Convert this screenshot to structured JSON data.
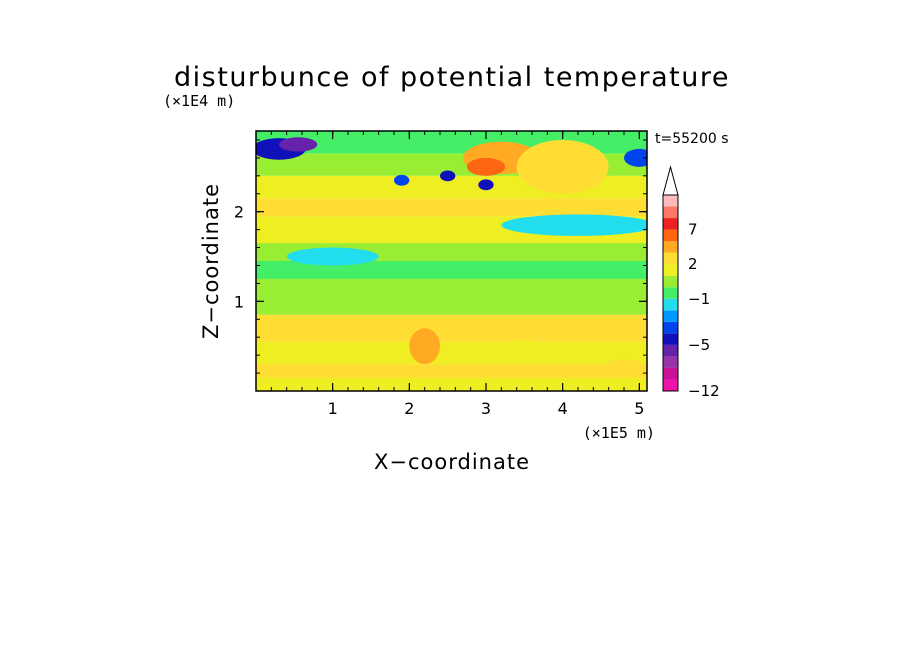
{
  "chart_data": {
    "type": "heatmap",
    "title": "disturbunce of potential temperature",
    "time_label": "t=55200 s",
    "xlabel": "X−coordinate",
    "ylabel": "Z−coordinate",
    "x_unit": "(×1E5 m)",
    "y_unit": "(×1E4 m)",
    "xlim": [
      0,
      5.1
    ],
    "ylim": [
      0,
      2.9
    ],
    "x_ticks": [
      "1",
      "2",
      "3",
      "4",
      "5"
    ],
    "y_ticks": [
      "1",
      "2"
    ],
    "colorbar": {
      "labels": [
        "7",
        "2",
        "−1",
        "−5",
        "−12"
      ],
      "levels": [
        -12,
        -10,
        -8,
        -6,
        -5,
        -4,
        -3,
        -2,
        -1,
        0,
        1,
        2,
        3,
        5,
        7,
        9,
        11
      ],
      "colors": [
        "#ee11aa",
        "#cc1199",
        "#9933aa",
        "#6622aa",
        "#1111bb",
        "#0044ee",
        "#0099ff",
        "#22ddee",
        "#44ee66",
        "#99ee33",
        "#eeee22",
        "#ffdd33",
        "#ffaa22",
        "#ff6611",
        "#ee2222",
        "#ff7766",
        "#ffbbbb"
      ]
    },
    "bands": [
      {
        "z": [
          0.0,
          0.15
        ],
        "value": 1.5
      },
      {
        "z": [
          0.15,
          0.3
        ],
        "value": 2.0
      },
      {
        "z": [
          0.3,
          0.55
        ],
        "value": 1.5
      },
      {
        "z": [
          0.55,
          0.85
        ],
        "value": 2.0
      },
      {
        "z": [
          0.85,
          1.25
        ],
        "value": 0.0
      },
      {
        "z": [
          1.25,
          1.45
        ],
        "value": -0.5
      },
      {
        "z": [
          1.45,
          1.65
        ],
        "value": 0.5
      },
      {
        "z": [
          1.65,
          1.95
        ],
        "value": 1.5
      },
      {
        "z": [
          1.95,
          2.15
        ],
        "value": 2.5
      },
      {
        "z": [
          2.15,
          2.4
        ],
        "value": 1.5
      },
      {
        "z": [
          2.4,
          2.65
        ],
        "value": 0.5
      },
      {
        "z": [
          2.65,
          2.9
        ],
        "value": -0.5
      }
    ],
    "blobs": [
      {
        "x": 0.3,
        "z": 2.7,
        "rx": 0.35,
        "rz": 0.12,
        "value": -4.5
      },
      {
        "x": 0.55,
        "z": 2.75,
        "rx": 0.25,
        "rz": 0.08,
        "value": -5.5
      },
      {
        "x": 5.0,
        "z": 2.6,
        "rx": 0.2,
        "rz": 0.1,
        "value": -3.5
      },
      {
        "x": 3.2,
        "z": 2.6,
        "rx": 0.5,
        "rz": 0.18,
        "value": 4.0
      },
      {
        "x": 3.0,
        "z": 2.5,
        "rx": 0.25,
        "rz": 0.1,
        "value": 6.0
      },
      {
        "x": 4.0,
        "z": 2.5,
        "rx": 0.6,
        "rz": 0.3,
        "value": 2.5
      },
      {
        "x": 2.5,
        "z": 2.4,
        "rx": 0.1,
        "rz": 0.06,
        "value": -4.5
      },
      {
        "x": 3.0,
        "z": 2.3,
        "rx": 0.1,
        "rz": 0.06,
        "value": -4.5
      },
      {
        "x": 1.9,
        "z": 2.35,
        "rx": 0.1,
        "rz": 0.06,
        "value": -3.5
      },
      {
        "x": 4.2,
        "z": 1.85,
        "rx": 1.0,
        "rz": 0.12,
        "value": -1.5
      },
      {
        "x": 1.0,
        "z": 1.5,
        "rx": 0.6,
        "rz": 0.1,
        "value": -1.5
      },
      {
        "x": 2.2,
        "z": 0.5,
        "rx": 0.2,
        "rz": 0.2,
        "value": 3.0
      },
      {
        "x": 3.5,
        "z": 0.45,
        "rx": 0.3,
        "rz": 0.12,
        "value": 1.0
      },
      {
        "x": 4.8,
        "z": 0.25,
        "rx": 0.3,
        "rz": 0.1,
        "value": 2.8
      }
    ]
  }
}
